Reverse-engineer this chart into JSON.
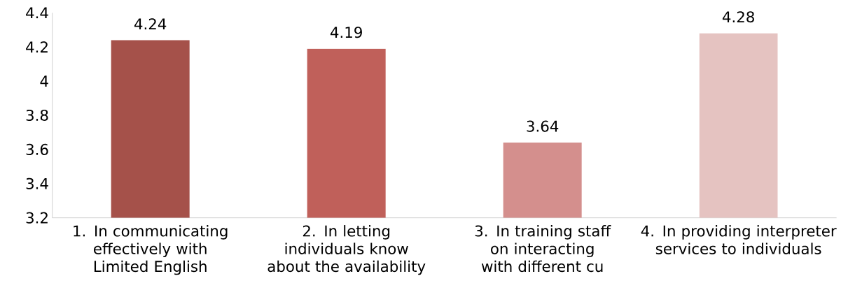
{
  "chart_data": {
    "type": "bar",
    "categories": [
      "1. In communicating effectively with Limited English",
      "2. In letting individuals know about the availability",
      "3. In training staff on interacting with different cu",
      "4. In providing interpreter services to individuals"
    ],
    "values": [
      4.24,
      4.19,
      3.64,
      4.28
    ],
    "value_labels": [
      "4.24",
      "4.19",
      "3.64",
      "4.28"
    ],
    "colors": [
      "#a5514a",
      "#c0605a",
      "#d48f8d",
      "#e5c3c1"
    ],
    "ylim": [
      3.2,
      4.4
    ],
    "yticks": [
      3.2,
      3.4,
      3.6,
      3.8,
      4,
      4.2,
      4.4
    ],
    "grid": false
  }
}
